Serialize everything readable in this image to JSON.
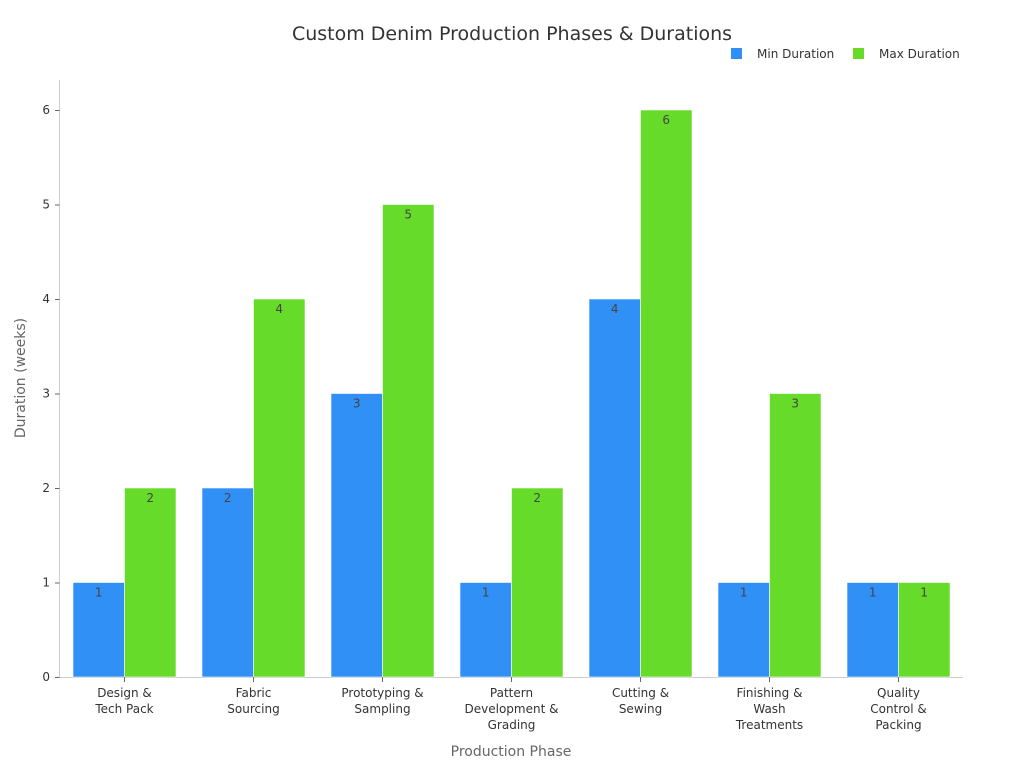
{
  "chart_data": {
    "type": "bar",
    "title": "Custom Denim Production Phases & Durations",
    "xlabel": "Production Phase",
    "ylabel": "Duration (weeks)",
    "ylim": [
      0,
      6.3
    ],
    "yticks": [
      0,
      1,
      2,
      3,
      4,
      5,
      6
    ],
    "grid": false,
    "legend_position": "top-right",
    "categories": [
      [
        "Design &",
        "Tech Pack"
      ],
      [
        "Fabric",
        "Sourcing"
      ],
      [
        "Prototyping &",
        "Sampling"
      ],
      [
        "Pattern",
        "Development &",
        "Grading"
      ],
      [
        "Cutting &",
        "Sewing"
      ],
      [
        "Finishing &",
        "Wash",
        "Treatments"
      ],
      [
        "Quality",
        "Control &",
        "Packing"
      ]
    ],
    "series": [
      {
        "name": "Min Duration",
        "color": "#3090f5",
        "values": [
          1,
          2,
          3,
          1,
          4,
          1,
          1
        ]
      },
      {
        "name": "Max Duration",
        "color": "#66db29",
        "values": [
          2,
          4,
          5,
          2,
          6,
          3,
          1
        ]
      }
    ]
  }
}
